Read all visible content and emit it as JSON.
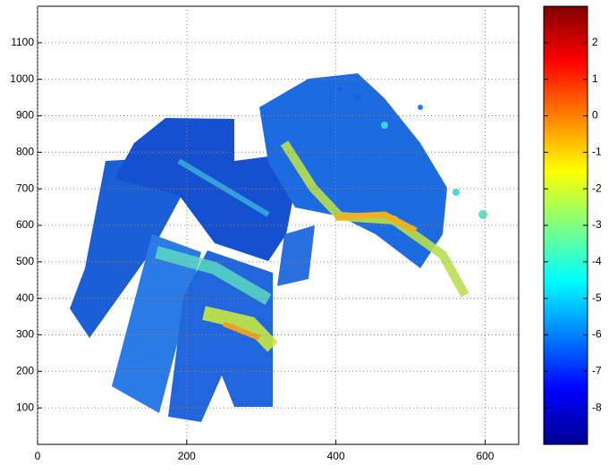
{
  "chart_data": {
    "type": "image",
    "xlim": [
      0,
      645
    ],
    "xticks": [
      0,
      200,
      400,
      600
    ],
    "ylim": [
      0,
      1200
    ],
    "yticks": [
      100,
      200,
      300,
      400,
      500,
      600,
      700,
      800,
      900,
      1000,
      1100
    ],
    "grid": true,
    "clim": [
      -9,
      3
    ],
    "cticks": [
      -8,
      -7,
      -6,
      -5,
      -4,
      -3,
      -2,
      -1,
      0,
      1,
      2
    ],
    "colormap": [
      "#00008f",
      "#0000ff",
      "#0080ff",
      "#00ffff",
      "#80ff80",
      "#ffff00",
      "#ff8000",
      "#ff0000",
      "#800000"
    ]
  }
}
